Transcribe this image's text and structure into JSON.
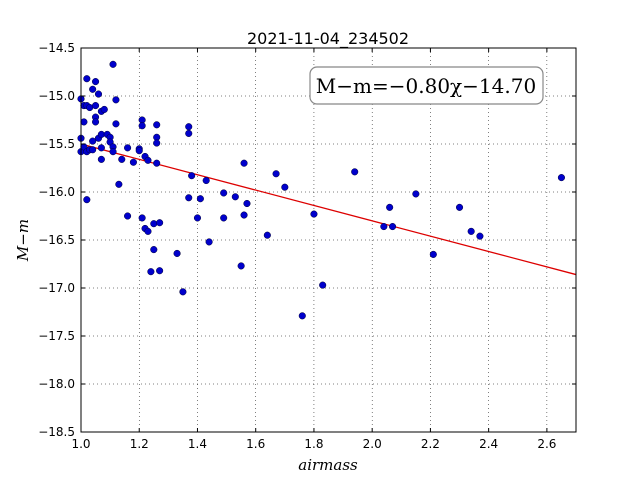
{
  "chart_data": {
    "type": "scatter",
    "title": "2021-11-04_234502",
    "xlabel": "airmass",
    "ylabel": "M−m",
    "xlim": [
      1.0,
      2.7
    ],
    "ylim": [
      -18.5,
      -14.5
    ],
    "y_inverted": true,
    "grid": true,
    "xticks": [
      "1.0",
      "1.2",
      "1.4",
      "1.6",
      "1.8",
      "2.0",
      "2.2",
      "2.4",
      "2.6"
    ],
    "yticks": [
      "−14.5",
      "−15.0",
      "−15.5",
      "−16.0",
      "−16.5",
      "−17.0",
      "−17.5",
      "−18.0",
      "−18.5"
    ],
    "annotation": "M−m=−0.80χ−14.70",
    "point_color": "#0000cc",
    "fit_color": "#dd0000",
    "fit": {
      "slope": -0.8,
      "intercept": -14.7
    },
    "points": [
      [
        1.0,
        -15.03
      ],
      [
        1.0,
        -15.44
      ],
      [
        1.0,
        -15.58
      ],
      [
        1.01,
        -15.1
      ],
      [
        1.01,
        -15.27
      ],
      [
        1.01,
        -15.53
      ],
      [
        1.02,
        -14.82
      ],
      [
        1.02,
        -15.1
      ],
      [
        1.02,
        -15.58
      ],
      [
        1.02,
        -16.08
      ],
      [
        1.03,
        -15.12
      ],
      [
        1.03,
        -15.56
      ],
      [
        1.04,
        -14.93
      ],
      [
        1.04,
        -15.47
      ],
      [
        1.04,
        -15.56
      ],
      [
        1.05,
        -14.85
      ],
      [
        1.05,
        -15.1
      ],
      [
        1.05,
        -15.22
      ],
      [
        1.05,
        -15.27
      ],
      [
        1.06,
        -14.98
      ],
      [
        1.06,
        -15.44
      ],
      [
        1.07,
        -15.16
      ],
      [
        1.07,
        -15.4
      ],
      [
        1.07,
        -15.54
      ],
      [
        1.07,
        -15.66
      ],
      [
        1.08,
        -15.14
      ],
      [
        1.09,
        -15.4
      ],
      [
        1.1,
        -15.43
      ],
      [
        1.1,
        -15.48
      ],
      [
        1.11,
        -15.53
      ],
      [
        1.11,
        -15.58
      ],
      [
        1.11,
        -14.67
      ],
      [
        1.12,
        -15.04
      ],
      [
        1.12,
        -15.29
      ],
      [
        1.13,
        -15.92
      ],
      [
        1.14,
        -15.66
      ],
      [
        1.16,
        -15.54
      ],
      [
        1.16,
        -16.25
      ],
      [
        1.18,
        -15.69
      ],
      [
        1.2,
        -15.55
      ],
      [
        1.2,
        -15.57
      ],
      [
        1.21,
        -15.25
      ],
      [
        1.21,
        -15.31
      ],
      [
        1.21,
        -16.27
      ],
      [
        1.22,
        -15.63
      ],
      [
        1.22,
        -16.38
      ],
      [
        1.23,
        -16.41
      ],
      [
        1.23,
        -15.67
      ],
      [
        1.24,
        -16.83
      ],
      [
        1.25,
        -16.33
      ],
      [
        1.25,
        -16.6
      ],
      [
        1.26,
        -15.3
      ],
      [
        1.26,
        -15.43
      ],
      [
        1.26,
        -15.49
      ],
      [
        1.26,
        -15.7
      ],
      [
        1.27,
        -16.32
      ],
      [
        1.27,
        -16.82
      ],
      [
        1.33,
        -16.64
      ],
      [
        1.35,
        -17.04
      ],
      [
        1.37,
        -15.32
      ],
      [
        1.37,
        -15.39
      ],
      [
        1.37,
        -16.06
      ],
      [
        1.38,
        -15.83
      ],
      [
        1.4,
        -16.27
      ],
      [
        1.41,
        -16.07
      ],
      [
        1.43,
        -15.88
      ],
      [
        1.44,
        -16.52
      ],
      [
        1.49,
        -16.01
      ],
      [
        1.49,
        -16.27
      ],
      [
        1.53,
        -16.05
      ],
      [
        1.55,
        -16.77
      ],
      [
        1.56,
        -15.7
      ],
      [
        1.56,
        -16.24
      ],
      [
        1.57,
        -16.12
      ],
      [
        1.64,
        -16.45
      ],
      [
        1.67,
        -15.81
      ],
      [
        1.7,
        -15.95
      ],
      [
        1.76,
        -17.29
      ],
      [
        1.8,
        -16.23
      ],
      [
        1.83,
        -16.97
      ],
      [
        1.94,
        -15.79
      ],
      [
        2.04,
        -16.36
      ],
      [
        2.06,
        -16.16
      ],
      [
        2.07,
        -16.36
      ],
      [
        2.15,
        -16.02
      ],
      [
        2.21,
        -16.65
      ],
      [
        2.3,
        -16.16
      ],
      [
        2.34,
        -16.41
      ],
      [
        2.37,
        -16.46
      ],
      [
        2.65,
        -15.85
      ]
    ]
  }
}
